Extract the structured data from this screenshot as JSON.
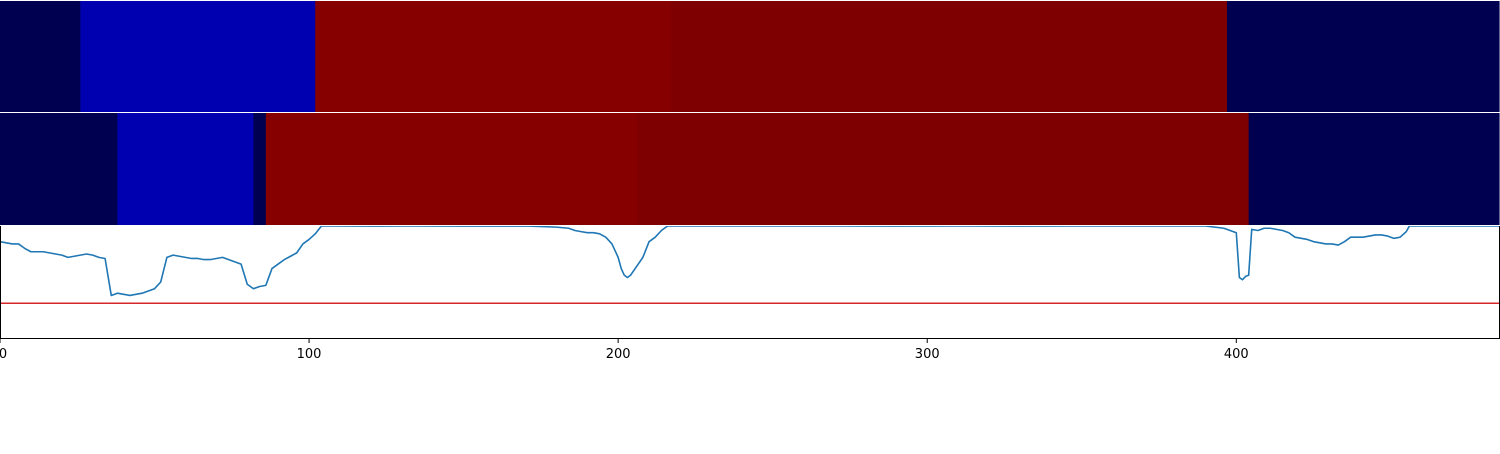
{
  "chart_data": [
    {
      "type": "heatmap",
      "xlim": [
        0,
        485
      ],
      "colors": {
        "deep-navy": "#000050",
        "blue": "#0000b0",
        "red": "#870000",
        "dark-red": "#7e0000"
      },
      "segments": [
        {
          "x0": 0,
          "x1": 26,
          "color": "#000050"
        },
        {
          "x0": 26,
          "x1": 102,
          "color": "#0000b0"
        },
        {
          "x0": 102,
          "x1": 217,
          "color": "#870000"
        },
        {
          "x0": 217,
          "x1": 397,
          "color": "#7e0000"
        },
        {
          "x0": 397,
          "x1": 485,
          "color": "#000050"
        }
      ]
    },
    {
      "type": "heatmap",
      "xlim": [
        0,
        485
      ],
      "segments": [
        {
          "x0": 0,
          "x1": 38,
          "color": "#000050"
        },
        {
          "x0": 38,
          "x1": 82,
          "color": "#0000b0"
        },
        {
          "x0": 82,
          "x1": 86,
          "color": "#000050"
        },
        {
          "x0": 86,
          "x1": 206,
          "color": "#870000"
        },
        {
          "x0": 206,
          "x1": 404,
          "color": "#7e0000"
        },
        {
          "x0": 404,
          "x1": 485,
          "color": "#000050"
        }
      ]
    },
    {
      "type": "line",
      "xlim": [
        0,
        485
      ],
      "ylim": [
        0,
        1
      ],
      "xticks": [
        0,
        100,
        200,
        300,
        400
      ],
      "xtick_labels": [
        "0",
        "100",
        "200",
        "300",
        "400"
      ],
      "grid": false,
      "threshold": {
        "y": 0.31,
        "color": "#d62728"
      },
      "series": [
        {
          "color": "#1f77b4",
          "points": [
            [
              0,
              0.86
            ],
            [
              2,
              0.85
            ],
            [
              4,
              0.84
            ],
            [
              6,
              0.84
            ],
            [
              8,
              0.8
            ],
            [
              10,
              0.77
            ],
            [
              12,
              0.77
            ],
            [
              14,
              0.77
            ],
            [
              16,
              0.76
            ],
            [
              18,
              0.75
            ],
            [
              20,
              0.74
            ],
            [
              22,
              0.72
            ],
            [
              24,
              0.73
            ],
            [
              26,
              0.74
            ],
            [
              28,
              0.75
            ],
            [
              30,
              0.74
            ],
            [
              32,
              0.72
            ],
            [
              34,
              0.71
            ],
            [
              36,
              0.38
            ],
            [
              38,
              0.4
            ],
            [
              40,
              0.39
            ],
            [
              42,
              0.38
            ],
            [
              44,
              0.39
            ],
            [
              46,
              0.4
            ],
            [
              48,
              0.42
            ],
            [
              50,
              0.44
            ],
            [
              52,
              0.5
            ],
            [
              54,
              0.72
            ],
            [
              56,
              0.74
            ],
            [
              58,
              0.73
            ],
            [
              60,
              0.72
            ],
            [
              62,
              0.71
            ],
            [
              64,
              0.71
            ],
            [
              66,
              0.7
            ],
            [
              68,
              0.7
            ],
            [
              70,
              0.71
            ],
            [
              72,
              0.72
            ],
            [
              74,
              0.7
            ],
            [
              76,
              0.68
            ],
            [
              78,
              0.66
            ],
            [
              80,
              0.48
            ],
            [
              82,
              0.44
            ],
            [
              84,
              0.46
            ],
            [
              86,
              0.47
            ],
            [
              88,
              0.62
            ],
            [
              90,
              0.66
            ],
            [
              92,
              0.7
            ],
            [
              94,
              0.73
            ],
            [
              96,
              0.76
            ],
            [
              98,
              0.84
            ],
            [
              100,
              0.88
            ],
            [
              102,
              0.93
            ],
            [
              104,
              1.0
            ],
            [
              108,
              1.0
            ],
            [
              120,
              0.999
            ],
            [
              132,
              1.0
            ],
            [
              150,
              0.999
            ],
            [
              170,
              1.0
            ],
            [
              180,
              0.99
            ],
            [
              184,
              0.98
            ],
            [
              186,
              0.96
            ],
            [
              188,
              0.95
            ],
            [
              190,
              0.94
            ],
            [
              192,
              0.94
            ],
            [
              194,
              0.93
            ],
            [
              196,
              0.9
            ],
            [
              198,
              0.84
            ],
            [
              200,
              0.72
            ],
            [
              201,
              0.62
            ],
            [
              202,
              0.56
            ],
            [
              203,
              0.54
            ],
            [
              204,
              0.56
            ],
            [
              206,
              0.64
            ],
            [
              208,
              0.72
            ],
            [
              210,
              0.86
            ],
            [
              212,
              0.9
            ],
            [
              214,
              0.96
            ],
            [
              216,
              1.0
            ],
            [
              230,
              1.0
            ],
            [
              250,
              1.0
            ],
            [
              270,
              1.0
            ],
            [
              290,
              0.999
            ],
            [
              310,
              1.0
            ],
            [
              330,
              0.999
            ],
            [
              350,
              1.0
            ],
            [
              370,
              1.0
            ],
            [
              390,
              1.0
            ],
            [
              396,
              0.98
            ],
            [
              398,
              0.96
            ],
            [
              400,
              0.94
            ],
            [
              401,
              0.54
            ],
            [
              402,
              0.52
            ],
            [
              403,
              0.55
            ],
            [
              404,
              0.56
            ],
            [
              405,
              0.97
            ],
            [
              407,
              0.96
            ],
            [
              409,
              0.98
            ],
            [
              411,
              0.98
            ],
            [
              413,
              0.97
            ],
            [
              415,
              0.96
            ],
            [
              417,
              0.94
            ],
            [
              419,
              0.9
            ],
            [
              421,
              0.89
            ],
            [
              423,
              0.88
            ],
            [
              425,
              0.86
            ],
            [
              427,
              0.85
            ],
            [
              429,
              0.84
            ],
            [
              431,
              0.84
            ],
            [
              433,
              0.83
            ],
            [
              435,
              0.86
            ],
            [
              437,
              0.9
            ],
            [
              439,
              0.9
            ],
            [
              441,
              0.9
            ],
            [
              443,
              0.91
            ],
            [
              445,
              0.92
            ],
            [
              447,
              0.92
            ],
            [
              449,
              0.91
            ],
            [
              451,
              0.89
            ],
            [
              453,
              0.9
            ],
            [
              455,
              0.95
            ],
            [
              456,
              1.0
            ],
            [
              460,
              1.0
            ],
            [
              470,
              1.0
            ],
            [
              480,
              1.0
            ],
            [
              485,
              1.0
            ]
          ]
        }
      ]
    }
  ]
}
